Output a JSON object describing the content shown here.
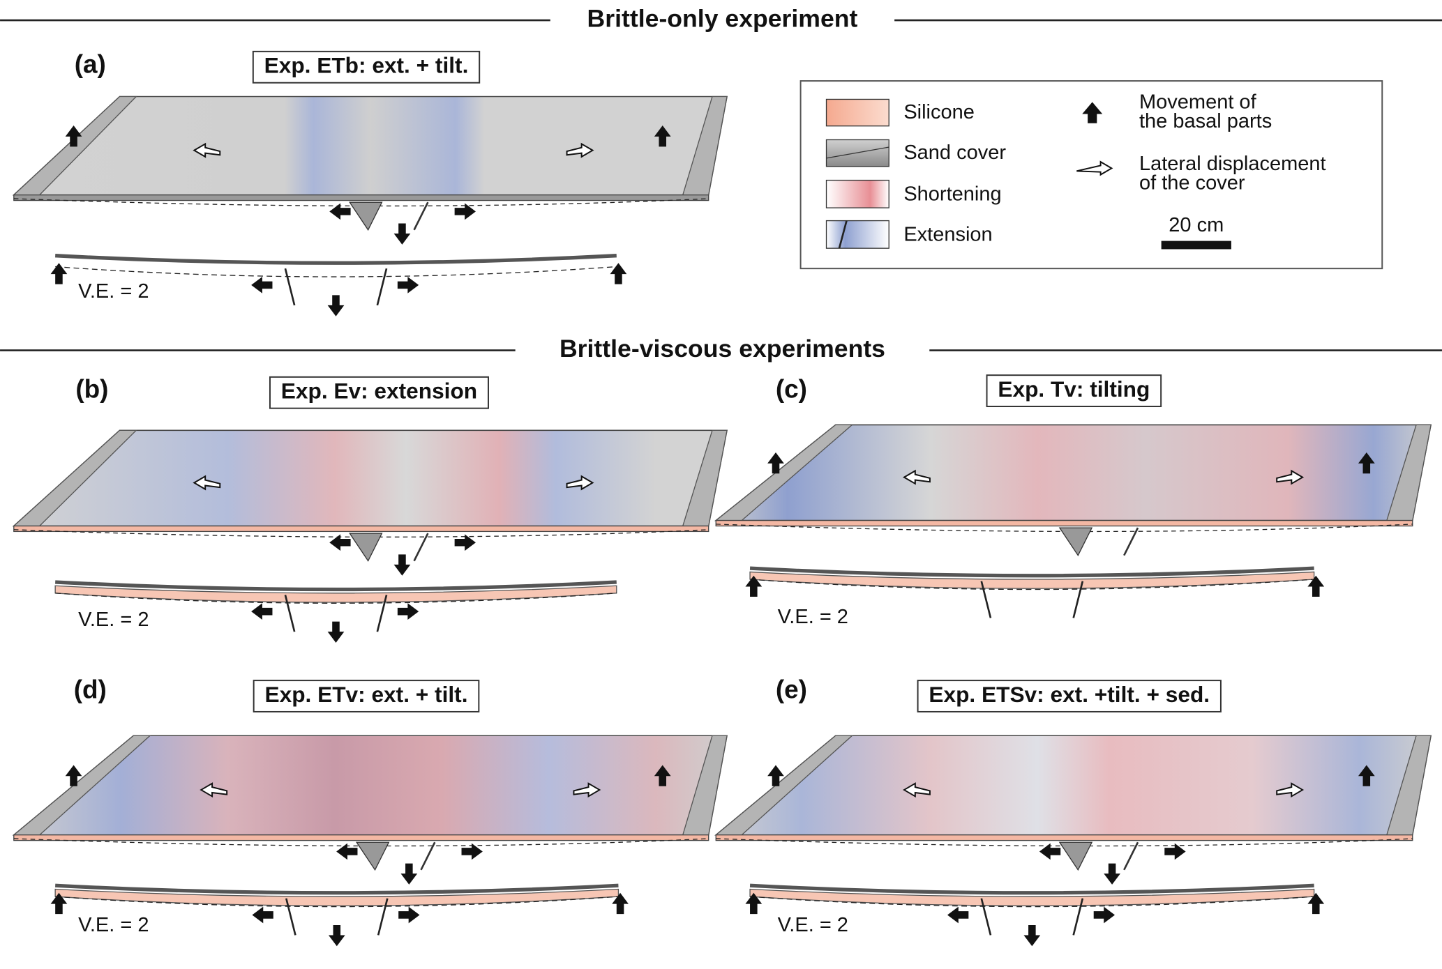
{
  "sections": [
    {
      "title": "Brittle-only experiment"
    },
    {
      "title": "Brittle-viscous experiments"
    }
  ],
  "panels": [
    {
      "label": "(a)",
      "title": "Exp. ETb: ext. + tilt.",
      "ve": "V.E. = 2"
    },
    {
      "label": "(b)",
      "title": "Exp. Ev: extension",
      "ve": "V.E. = 2"
    },
    {
      "label": "(c)",
      "title": "Exp. Tv: tilting",
      "ve": "V.E. = 2"
    },
    {
      "label": "(d)",
      "title": "Exp. ETv: ext. + tilt.",
      "ve": "V.E. = 2"
    },
    {
      "label": "(e)",
      "title": "Exp. ETSv: ext. +tilt. + sed.",
      "ve": "V.E. = 2"
    }
  ],
  "legend": {
    "materials": [
      "Silicone",
      "Sand cover",
      "Shortening",
      "Extension"
    ],
    "movement": [
      "Movement of",
      "the basal parts"
    ],
    "displacement": [
      "Lateral displacement",
      "of the cover"
    ],
    "scale": "20 cm"
  }
}
